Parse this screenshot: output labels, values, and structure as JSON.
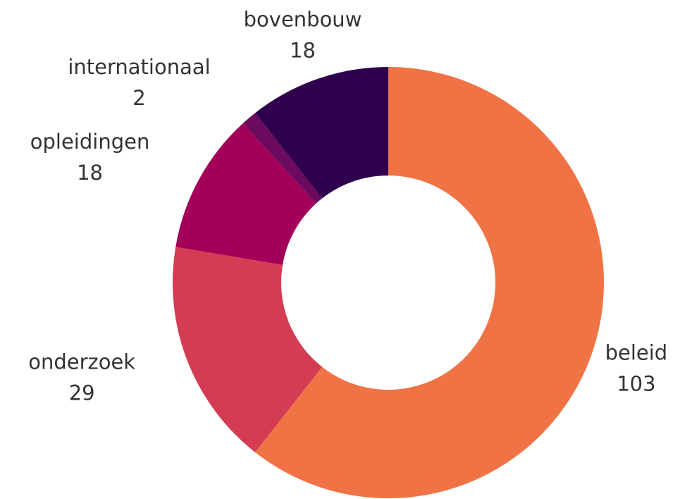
{
  "chart_data": {
    "type": "donut",
    "categories": [
      "beleid",
      "onderzoek",
      "opleidingen",
      "internationaal",
      "bovenbouw"
    ],
    "values": [
      103,
      29,
      18,
      2,
      18
    ],
    "colors": [
      "#f07346",
      "#d33c52",
      "#a3005a",
      "#6b0a5e",
      "#2e004e"
    ]
  }
}
